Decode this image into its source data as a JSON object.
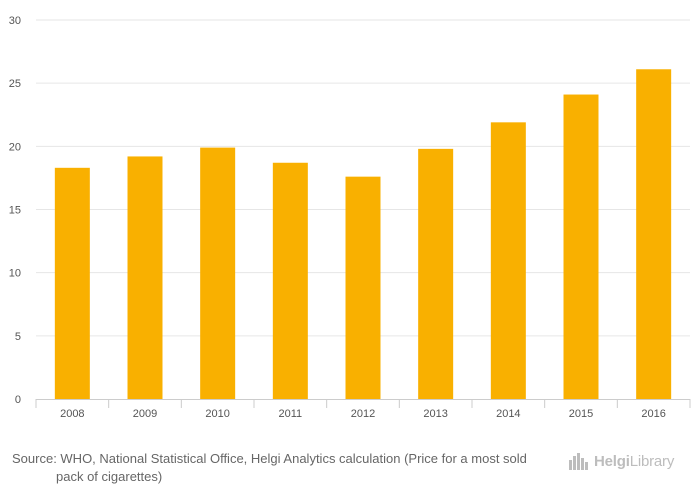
{
  "chart_data": {
    "type": "bar",
    "categories": [
      "2008",
      "2009",
      "2010",
      "2011",
      "2012",
      "2013",
      "2014",
      "2015",
      "2016"
    ],
    "values": [
      18.3,
      19.2,
      19.9,
      18.7,
      17.6,
      19.8,
      21.9,
      24.1,
      26.1
    ],
    "yticks": [
      0,
      5,
      10,
      15,
      20,
      25,
      30
    ],
    "ylim": [
      0,
      30
    ],
    "grid": true,
    "bar_color": "#f9b000"
  },
  "footer": {
    "source_text": "Source: WHO, National Statistical Office, Helgi Analytics calculation (Price for a most sold pack of cigarettes)",
    "logo_brand": "Helgi",
    "logo_suffix": "Library"
  }
}
